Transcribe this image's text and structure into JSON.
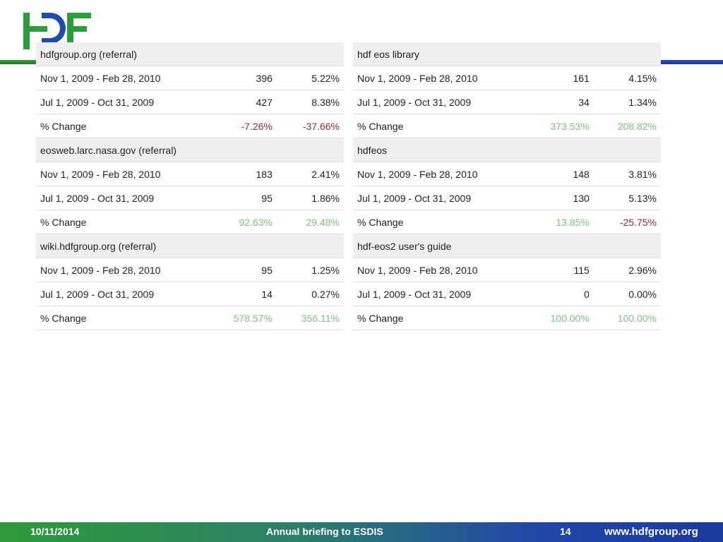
{
  "tables": [
    {
      "rows": [
        {
          "header": "hdfgroup.org (referral)"
        },
        {
          "label": "Nov 1, 2009 - Feb 28, 2010",
          "v1": "396",
          "v2": "5.22%",
          "s1": "",
          "s2": ""
        },
        {
          "label": "Jul 1, 2009 - Oct 31, 2009",
          "v1": "427",
          "v2": "8.38%",
          "s1": "",
          "s2": ""
        },
        {
          "label": "% Change",
          "v1": "-7.26%",
          "v2": "-37.66%",
          "s1": "neg",
          "s2": "neg"
        },
        {
          "header": "eosweb.larc.nasa.gov (referral)"
        },
        {
          "label": "Nov 1, 2009 - Feb 28, 2010",
          "v1": "183",
          "v2": "2.41%",
          "s1": "",
          "s2": ""
        },
        {
          "label": "Jul 1, 2009 - Oct 31, 2009",
          "v1": "95",
          "v2": "1.86%",
          "s1": "",
          "s2": ""
        },
        {
          "label": "% Change",
          "v1": "92.63%",
          "v2": "29.48%",
          "s1": "pos",
          "s2": "pos"
        },
        {
          "header": "wiki.hdfgroup.org (referral)"
        },
        {
          "label": "Nov 1, 2009 - Feb 28, 2010",
          "v1": "95",
          "v2": "1.25%",
          "s1": "",
          "s2": ""
        },
        {
          "label": "Jul 1, 2009 - Oct 31, 2009",
          "v1": "14",
          "v2": "0.27%",
          "s1": "",
          "s2": ""
        },
        {
          "label": "% Change",
          "v1": "578.57%",
          "v2": "356.11%",
          "s1": "pos",
          "s2": "pos"
        }
      ]
    },
    {
      "rows": [
        {
          "header": "hdf eos library"
        },
        {
          "label": "Nov 1, 2009 - Feb 28, 2010",
          "v1": "161",
          "v2": "4.15%",
          "s1": "",
          "s2": ""
        },
        {
          "label": "Jul 1, 2009 - Oct 31, 2009",
          "v1": "34",
          "v2": "1.34%",
          "s1": "",
          "s2": ""
        },
        {
          "label": "% Change",
          "v1": "373.53%",
          "v2": "208.82%",
          "s1": "pos",
          "s2": "pos"
        },
        {
          "header": "hdfeos"
        },
        {
          "label": "Nov 1, 2009 - Feb 28, 2010",
          "v1": "148",
          "v2": "3.81%",
          "s1": "",
          "s2": ""
        },
        {
          "label": "Jul 1, 2009 - Oct 31, 2009",
          "v1": "130",
          "v2": "5.13%",
          "s1": "",
          "s2": ""
        },
        {
          "label": "% Change",
          "v1": "13.85%",
          "v2": "-25.75%",
          "s1": "pos",
          "s2": "neg"
        },
        {
          "header": "hdf-eos2 user's guide"
        },
        {
          "label": "Nov 1, 2009 - Feb 28, 2010",
          "v1": "115",
          "v2": "2.96%",
          "s1": "",
          "s2": ""
        },
        {
          "label": "Jul 1, 2009 - Oct 31, 2009",
          "v1": "0",
          "v2": "0.00%",
          "s1": "",
          "s2": ""
        },
        {
          "label": "% Change",
          "v1": "100.00%",
          "v2": "100.00%",
          "s1": "pos",
          "s2": "pos"
        }
      ]
    }
  ],
  "colors": {
    "positive": "#7fc07f",
    "negative": "#9b2b2b",
    "logo_green": "#2e9b3c",
    "logo_blue": "#1d4fa8"
  },
  "footer": {
    "date": "10/11/2014",
    "title": "Annual briefing to ESDIS",
    "page": "14",
    "url": "www.hdfgroup.org"
  }
}
